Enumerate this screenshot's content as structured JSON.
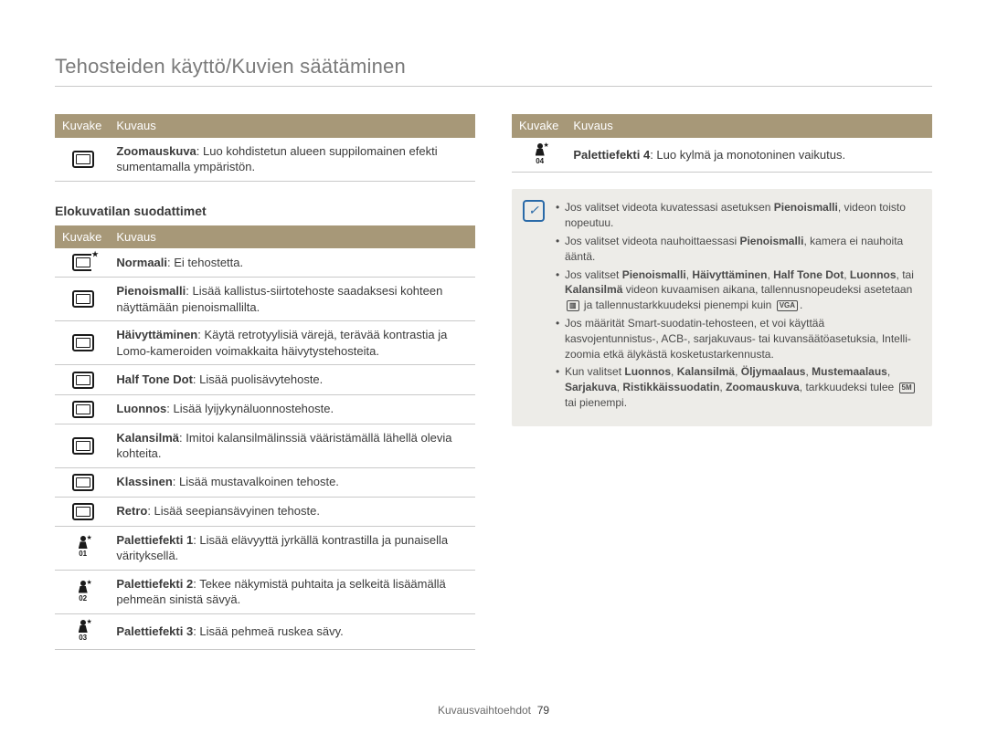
{
  "page": {
    "title": "Tehosteiden käyttö/Kuvien säätäminen",
    "footer_label": "Kuvausvaihtoehdot",
    "footer_page": "79"
  },
  "headers": {
    "icon": "Kuvake",
    "desc": "Kuvaus"
  },
  "section": {
    "movie_filters": "Elokuvatilan suodattimet"
  },
  "left_top": [
    {
      "bold": "Zoomauskuva",
      "rest": ": Luo kohdistetun alueen suppilomainen efekti sumentamalla ympäristön."
    }
  ],
  "left_movie": [
    {
      "icon": "off",
      "bold": "Normaali",
      "rest": ": Ei tehostetta."
    },
    {
      "icon": "rect",
      "bold": "Pienoismalli",
      "rest": ": Lisää kallistus-siirtotehoste saadaksesi kohteen näyttämään pienoismallilta."
    },
    {
      "icon": "rect",
      "bold": "Häivyttäminen",
      "rest": ": Käytä retrotyylisiä värejä, terävää kontrastia ja Lomo-kameroiden voimakkaita häivytystehosteita."
    },
    {
      "icon": "rect",
      "bold": "Half Tone Dot",
      "rest": ": Lisää puolisävytehoste."
    },
    {
      "icon": "rect",
      "bold": "Luonnos",
      "rest": ": Lisää lyijykynäluonnostehoste."
    },
    {
      "icon": "rect",
      "bold": "Kalansilmä",
      "rest": ": Imitoi kalansilmälinssiä vääristämällä lähellä olevia kohteita."
    },
    {
      "icon": "rect",
      "bold": "Klassinen",
      "rest": ": Lisää mustavalkoinen tehoste."
    },
    {
      "icon": "rect",
      "bold": "Retro",
      "rest": ": Lisää seepiansävyinen tehoste."
    },
    {
      "icon": "p01",
      "bold": "Palettiefekti 1",
      "rest": ": Lisää elävyyttä jyrkällä kontrastilla ja punaisella värityksellä."
    },
    {
      "icon": "p02",
      "bold": "Palettiefekti 2",
      "rest": ": Tekee näkymistä puhtaita ja selkeitä lisäämällä pehmeän sinistä sävyä."
    },
    {
      "icon": "p03",
      "bold": "Palettiefekti 3",
      "rest": ": Lisää pehmeä ruskea sävy."
    }
  ],
  "right_top": [
    {
      "icon": "p04",
      "bold": "Palettiefekti 4",
      "rest": ": Luo kylmä ja monotoninen vaikutus."
    }
  ],
  "notes": [
    {
      "pre": "Jos valitset videota kuvatessasi asetuksen ",
      "b1": "Pienoismalli",
      "post": ", videon toisto nopeutuu."
    },
    {
      "pre": "Jos valitset videota nauhoittaessasi ",
      "b1": "Pienoismalli",
      "post": ", kamera ei nauhoita ääntä."
    },
    {
      "pre": "Jos valitset ",
      "b1": "Pienoismalli",
      "mid1": ", ",
      "b2": "Häivyttäminen",
      "mid2": ", ",
      "b3": "Half Tone Dot",
      "mid3": ", ",
      "b4": "Luonnos",
      "mid4": ", tai ",
      "b5": "Kalansilmä",
      "post": " videon kuvaamisen aikana, tallennusnopeudeksi asetetaan ",
      "glyph1": "▥",
      "post2": " ja tallennustarkkuudeksi pienempi kuin ",
      "glyph2": "VGA",
      "post3": "."
    },
    {
      "pre": "Jos määrität Smart-suodatin-tehosteen, et voi käyttää kasvojentunnistus-, ACB-, sarjakuvaus- tai kuvansäätöasetuksia, Intelli-zoomia etkä älykästä kosketustarkennusta."
    },
    {
      "pre": "Kun valitset ",
      "b1": "Luonnos",
      "mid1": ", ",
      "b2": "Kalansilmä",
      "mid2": ", ",
      "b3": "Öljymaalaus",
      "mid3": ", ",
      "b4": "Mustemaalaus",
      "mid4": ", ",
      "b5": "Sarjakuva",
      "mid5": ", ",
      "b6": "Ristikkäissuodatin",
      "mid6": ", ",
      "b7": "Zoomauskuva",
      "post": ", tarkkuudeksi tulee ",
      "glyph1": "5M",
      "post2": " tai pienempi."
    }
  ]
}
